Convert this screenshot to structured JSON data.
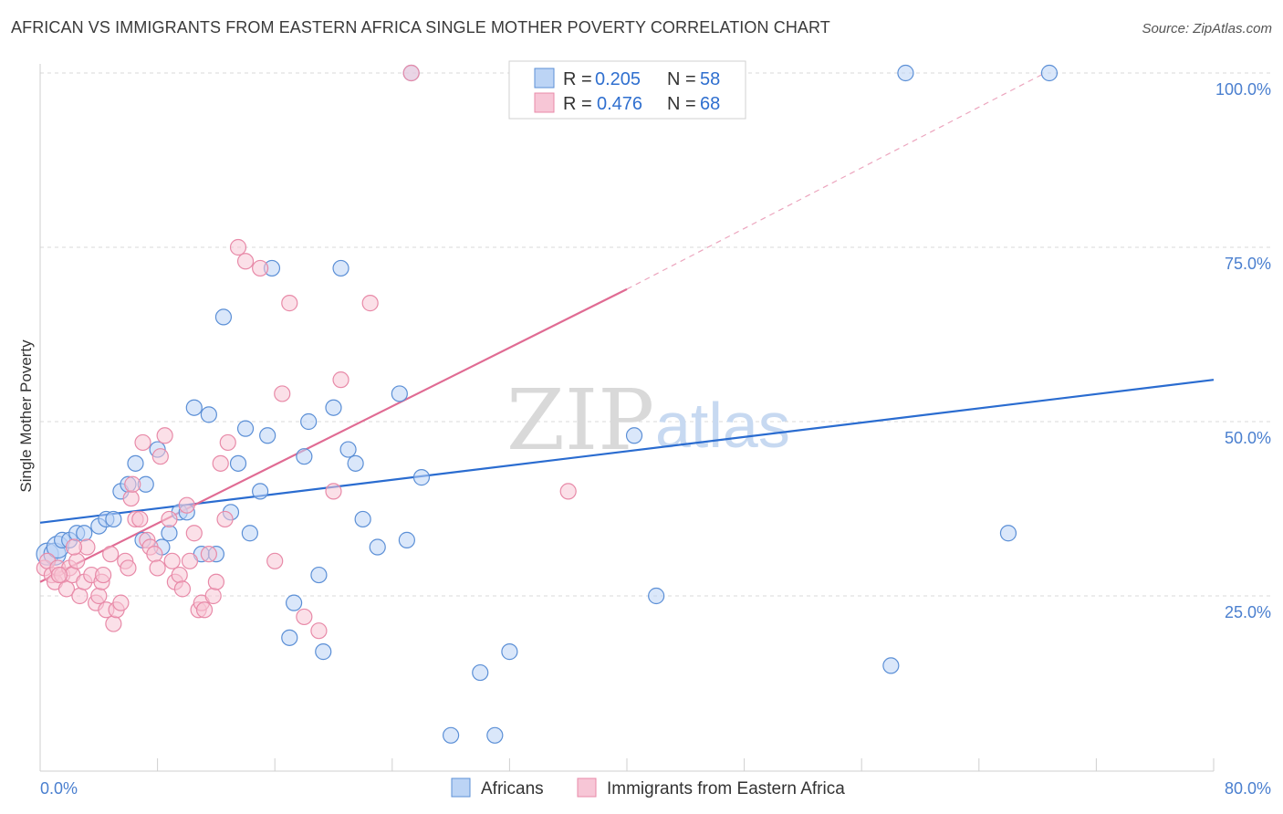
{
  "title": "AFRICAN VS IMMIGRANTS FROM EASTERN AFRICA SINGLE MOTHER POVERTY CORRELATION CHART",
  "source": "Source: ZipAtlas.com",
  "watermark": {
    "zip": "ZIP",
    "atlas": "atlas"
  },
  "colors": {
    "blue": "#5b8fd6",
    "blue_fill": "#bcd4f5",
    "blue_line": "#2a6cd0",
    "pink": "#e88aa8",
    "pink_fill": "#f7c6d6",
    "pink_line": "#e06b93",
    "grid": "#d8d8d8",
    "tick_label": "#4a7fcf"
  },
  "legend": {
    "africans": {
      "r_label": "R =",
      "r_value": "0.205",
      "n_label": "N =",
      "n_value": "58"
    },
    "immigrants": {
      "r_label": "R =",
      "r_value": "0.476",
      "n_label": "N =",
      "n_value": "68"
    }
  },
  "chart_data": {
    "type": "scatter",
    "title": "AFRICAN VS IMMIGRANTS FROM EASTERN AFRICA SINGLE MOTHER POVERTY CORRELATION CHART",
    "ylabel": "Single Mother Poverty",
    "xlabel": "",
    "xlim": [
      0,
      80
    ],
    "ylim": [
      0,
      105
    ],
    "x_tick_labels": {
      "min": "0.0%",
      "max": "80.0%"
    },
    "y_ticks": [
      25,
      50,
      75,
      100
    ],
    "y_tick_labels": [
      "25.0%",
      "50.0%",
      "75.0%",
      "100.0%"
    ],
    "series": [
      {
        "name": "Africans",
        "color": "blue",
        "points": [
          [
            0.5,
            31
          ],
          [
            1,
            31
          ],
          [
            1.2,
            32
          ],
          [
            1.5,
            33
          ],
          [
            2,
            33
          ],
          [
            2.5,
            34
          ],
          [
            3,
            34
          ],
          [
            4,
            35
          ],
          [
            4.5,
            36
          ],
          [
            5,
            36
          ],
          [
            5.5,
            40
          ],
          [
            6,
            41
          ],
          [
            6.5,
            44
          ],
          [
            7,
            33
          ],
          [
            7.2,
            41
          ],
          [
            8,
            46
          ],
          [
            8.3,
            32
          ],
          [
            8.8,
            34
          ],
          [
            9.5,
            37
          ],
          [
            10,
            37
          ],
          [
            10.5,
            52
          ],
          [
            11,
            31
          ],
          [
            11.5,
            51
          ],
          [
            12,
            31
          ],
          [
            12.5,
            65
          ],
          [
            13,
            37
          ],
          [
            13.5,
            44
          ],
          [
            14,
            49
          ],
          [
            14.3,
            34
          ],
          [
            15,
            40
          ],
          [
            15.5,
            48
          ],
          [
            15.8,
            72
          ],
          [
            17,
            19
          ],
          [
            17.3,
            24
          ],
          [
            18,
            45
          ],
          [
            18.3,
            50
          ],
          [
            19,
            28
          ],
          [
            19.3,
            17
          ],
          [
            20,
            52
          ],
          [
            20.5,
            72
          ],
          [
            21,
            46
          ],
          [
            21.5,
            44
          ],
          [
            22,
            36
          ],
          [
            23,
            32
          ],
          [
            24.5,
            54
          ],
          [
            25,
            33
          ],
          [
            26,
            42
          ],
          [
            28,
            5
          ],
          [
            30,
            14
          ],
          [
            31,
            5
          ],
          [
            32,
            17
          ],
          [
            40.5,
            48
          ],
          [
            42,
            25
          ],
          [
            58,
            15
          ],
          [
            66,
            34
          ],
          [
            25.3,
            100
          ],
          [
            59,
            100
          ],
          [
            68.8,
            100
          ]
        ],
        "trend": {
          "x": [
            0,
            80
          ],
          "y": [
            35.5,
            56
          ]
        }
      },
      {
        "name": "Immigrants from Eastern Africa",
        "color": "pink",
        "points": [
          [
            0.3,
            29
          ],
          [
            0.5,
            30
          ],
          [
            0.8,
            28
          ],
          [
            1,
            27
          ],
          [
            1.2,
            29
          ],
          [
            1.5,
            28
          ],
          [
            1.8,
            26
          ],
          [
            2,
            29
          ],
          [
            2.2,
            28
          ],
          [
            2.5,
            30
          ],
          [
            2.7,
            25
          ],
          [
            3,
            27
          ],
          [
            3.2,
            32
          ],
          [
            3.5,
            28
          ],
          [
            3.8,
            24
          ],
          [
            4,
            25
          ],
          [
            4.2,
            27
          ],
          [
            4.5,
            23
          ],
          [
            4.8,
            31
          ],
          [
            5,
            21
          ],
          [
            5.2,
            23
          ],
          [
            5.5,
            24
          ],
          [
            5.8,
            30
          ],
          [
            6,
            29
          ],
          [
            6.2,
            39
          ],
          [
            6.5,
            36
          ],
          [
            6.8,
            36
          ],
          [
            7,
            47
          ],
          [
            7.3,
            33
          ],
          [
            7.5,
            32
          ],
          [
            7.8,
            31
          ],
          [
            8,
            29
          ],
          [
            8.2,
            45
          ],
          [
            8.5,
            48
          ],
          [
            8.8,
            36
          ],
          [
            9,
            30
          ],
          [
            9.2,
            27
          ],
          [
            9.5,
            28
          ],
          [
            9.7,
            26
          ],
          [
            10,
            38
          ],
          [
            10.2,
            30
          ],
          [
            10.5,
            34
          ],
          [
            10.8,
            23
          ],
          [
            11,
            24
          ],
          [
            11.2,
            23
          ],
          [
            11.5,
            31
          ],
          [
            11.8,
            25
          ],
          [
            12,
            27
          ],
          [
            12.3,
            44
          ],
          [
            12.6,
            36
          ],
          [
            12.8,
            47
          ],
          [
            13.5,
            75
          ],
          [
            14,
            73
          ],
          [
            15,
            72
          ],
          [
            16,
            30
          ],
          [
            16.5,
            54
          ],
          [
            17,
            67
          ],
          [
            18,
            22
          ],
          [
            19,
            20
          ],
          [
            20,
            40
          ],
          [
            20.5,
            56
          ],
          [
            22.5,
            67
          ],
          [
            25.3,
            100
          ],
          [
            36,
            40
          ],
          [
            4.3,
            28
          ],
          [
            6.3,
            41
          ],
          [
            2.3,
            32
          ],
          [
            1.3,
            28
          ]
        ],
        "trend": {
          "x": [
            0,
            40
          ],
          "y": [
            27,
            69
          ],
          "dashed_to": {
            "x": 68.5,
            "y": 100
          }
        }
      }
    ],
    "legend_position": "top-center",
    "bottom_legend": [
      "Africans",
      "Immigrants from Eastern Africa"
    ]
  }
}
